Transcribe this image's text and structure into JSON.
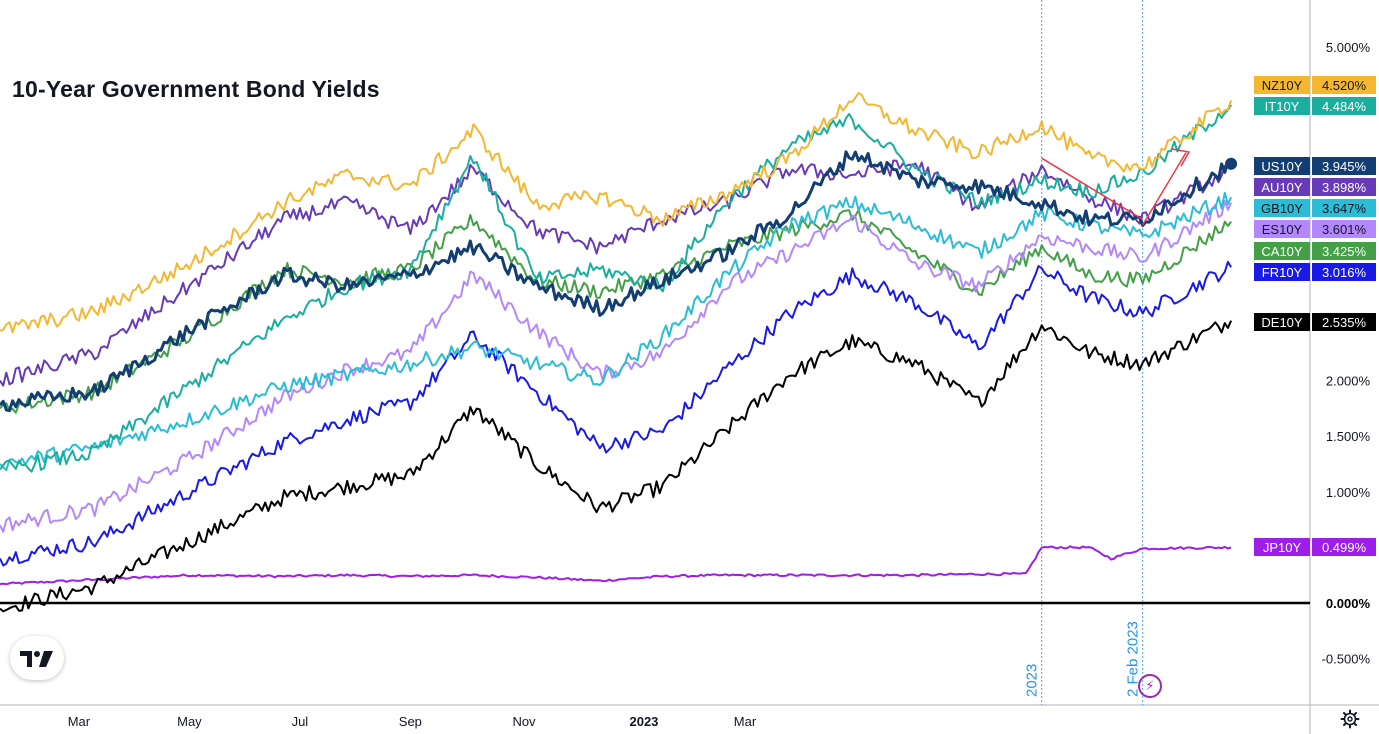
{
  "chart_data": {
    "type": "line",
    "title": "10-Year Government Bond Yields",
    "x_tick_labels": [
      "Mar",
      "May",
      "Jul",
      "Sep",
      "Nov",
      "2023",
      "Mar"
    ],
    "y_tick_labels": [
      "5.000%",
      "2.000%",
      "1.500%",
      "1.000%",
      "-0.500%"
    ],
    "zero_line_label": "0.000%",
    "ylim": [
      -0.9,
      5.5
    ],
    "xlim": [
      0,
      415
    ],
    "event_lines": [
      {
        "label": "2023",
        "x": 330
      },
      {
        "label": "2 Feb 2023",
        "x": 362
      }
    ],
    "series": [
      {
        "name": "NZ10Y",
        "last": "4.520%",
        "color": "#f4b731",
        "x": [
          0,
          30,
          60,
          90,
          110,
          130,
          150,
          170,
          190,
          210,
          230,
          250,
          270,
          290,
          310,
          330,
          345,
          362,
          390
        ],
        "values": [
          2.45,
          2.62,
          3.05,
          3.6,
          3.85,
          3.75,
          4.25,
          3.58,
          3.66,
          3.45,
          3.68,
          4.0,
          4.55,
          4.25,
          4.04,
          4.3,
          4.0,
          3.92,
          4.52
        ]
      },
      {
        "name": "IT10Y",
        "last": "4.484%",
        "color": "#1aae9f",
        "x": [
          0,
          30,
          60,
          90,
          110,
          130,
          150,
          170,
          190,
          210,
          230,
          250,
          270,
          290,
          310,
          330,
          345,
          362,
          390
        ],
        "values": [
          1.2,
          1.35,
          1.95,
          2.55,
          2.85,
          3.0,
          4.02,
          2.9,
          3.0,
          2.85,
          3.6,
          4.1,
          4.35,
          3.9,
          3.6,
          3.8,
          3.7,
          3.86,
          4.48
        ]
      },
      {
        "name": "US10Y",
        "last": "3.945%",
        "color": "#133e72",
        "x": [
          0,
          30,
          60,
          90,
          110,
          130,
          150,
          170,
          190,
          210,
          230,
          250,
          270,
          290,
          310,
          330,
          345,
          362,
          390
        ],
        "values": [
          1.78,
          1.9,
          2.45,
          2.95,
          2.85,
          2.95,
          3.2,
          2.85,
          2.65,
          2.9,
          3.15,
          3.5,
          4.05,
          3.8,
          3.75,
          3.6,
          3.45,
          3.45,
          3.95
        ]
      },
      {
        "name": "AU10Y",
        "last": "3.898%",
        "color": "#673ab7",
        "x": [
          0,
          30,
          60,
          90,
          110,
          130,
          150,
          170,
          190,
          210,
          230,
          250,
          270,
          290,
          310,
          330,
          345,
          362,
          390
        ],
        "values": [
          2.0,
          2.25,
          2.85,
          3.45,
          3.6,
          3.35,
          3.9,
          3.35,
          3.2,
          3.45,
          3.6,
          3.9,
          3.85,
          3.95,
          3.55,
          3.9,
          3.65,
          3.45,
          3.9
        ]
      },
      {
        "name": "GB10Y",
        "last": "3.647%",
        "color": "#2bbcd6",
        "x": [
          0,
          30,
          60,
          90,
          110,
          130,
          150,
          170,
          190,
          210,
          230,
          250,
          270,
          290,
          310,
          330,
          345,
          362,
          390
        ],
        "values": [
          1.25,
          1.4,
          1.65,
          1.95,
          2.05,
          2.15,
          2.3,
          2.15,
          2.0,
          2.4,
          2.95,
          3.4,
          3.6,
          3.4,
          3.15,
          3.5,
          3.4,
          3.3,
          3.65
        ]
      },
      {
        "name": "ES10Y",
        "last": "3.601%",
        "color": "#b388ff",
        "x": [
          0,
          30,
          60,
          90,
          110,
          130,
          150,
          170,
          190,
          210,
          230,
          250,
          270,
          290,
          310,
          330,
          345,
          362,
          390
        ],
        "values": [
          0.7,
          0.85,
          1.3,
          1.85,
          2.1,
          2.25,
          2.95,
          2.45,
          2.05,
          2.25,
          2.85,
          3.15,
          3.45,
          3.05,
          2.85,
          3.3,
          3.2,
          3.1,
          3.6
        ]
      },
      {
        "name": "CA10Y",
        "last": "3.425%",
        "color": "#43a047",
        "x": [
          0,
          30,
          60,
          90,
          110,
          130,
          150,
          170,
          190,
          210,
          230,
          250,
          270,
          290,
          310,
          330,
          345,
          362,
          390
        ],
        "values": [
          1.75,
          1.9,
          2.4,
          3.0,
          2.9,
          3.0,
          3.45,
          2.9,
          2.8,
          2.95,
          3.2,
          3.35,
          3.5,
          3.15,
          2.8,
          3.2,
          2.95,
          2.9,
          3.43
        ]
      },
      {
        "name": "FR10Y",
        "last": "3.016%",
        "color": "#1a1ae6",
        "x": [
          0,
          30,
          60,
          90,
          110,
          130,
          150,
          170,
          190,
          210,
          230,
          250,
          270,
          290,
          310,
          330,
          345,
          362,
          390
        ],
        "values": [
          0.4,
          0.55,
          1.0,
          1.45,
          1.65,
          1.8,
          2.4,
          1.9,
          1.4,
          1.55,
          2.1,
          2.6,
          2.95,
          2.7,
          2.3,
          3.0,
          2.75,
          2.6,
          3.02
        ]
      },
      {
        "name": "DE10Y",
        "last": "2.535%",
        "color": "#000000",
        "x": [
          0,
          30,
          60,
          90,
          110,
          130,
          150,
          170,
          190,
          210,
          230,
          250,
          270,
          290,
          310,
          330,
          345,
          362,
          390
        ],
        "values": [
          -0.05,
          0.15,
          0.55,
          0.95,
          1.05,
          1.15,
          1.75,
          1.25,
          0.85,
          1.05,
          1.55,
          2.05,
          2.35,
          2.15,
          1.8,
          2.5,
          2.25,
          2.15,
          2.54
        ]
      },
      {
        "name": "JP10Y",
        "last": "0.499%",
        "color": "#9c1ee8",
        "x": [
          0,
          30,
          60,
          90,
          110,
          130,
          150,
          170,
          190,
          210,
          230,
          250,
          270,
          290,
          310,
          325,
          330,
          345,
          352,
          362,
          390
        ],
        "values": [
          0.17,
          0.21,
          0.25,
          0.24,
          0.25,
          0.24,
          0.25,
          0.23,
          0.2,
          0.24,
          0.25,
          0.25,
          0.25,
          0.25,
          0.26,
          0.26,
          0.5,
          0.5,
          0.4,
          0.49,
          0.5
        ]
      }
    ],
    "grid": false,
    "legend": "right"
  }
}
